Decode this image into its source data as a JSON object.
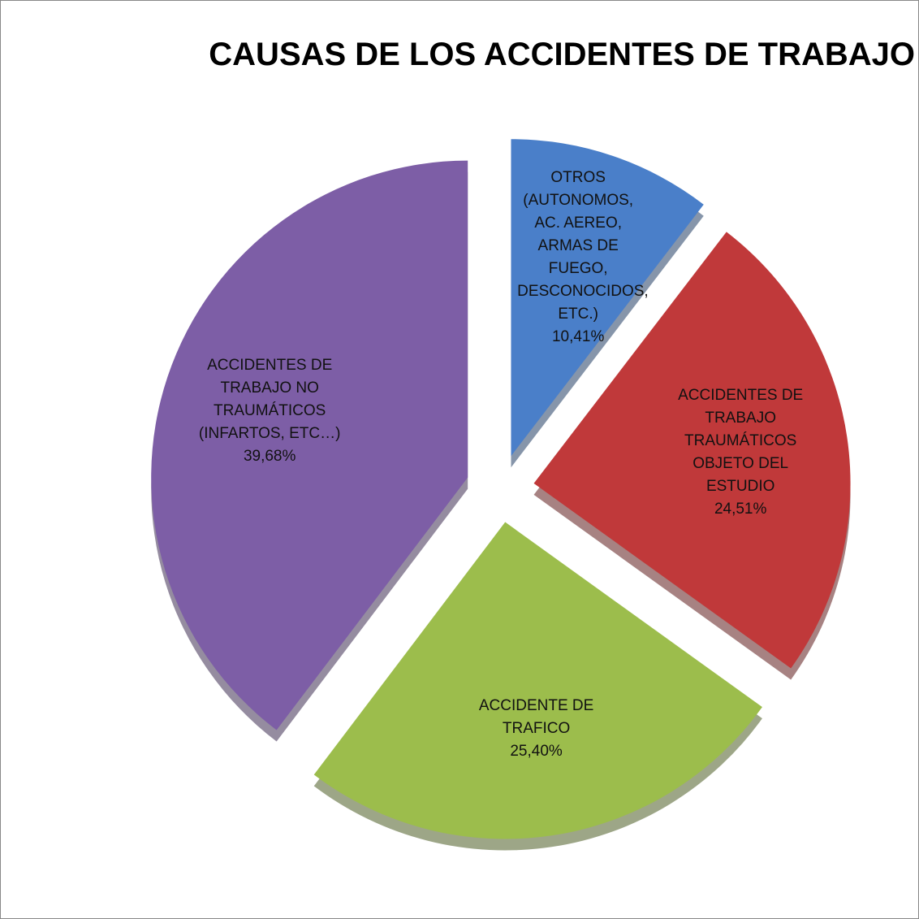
{
  "chart_data": {
    "type": "pie",
    "title": "CAUSAS DE LOS ACCIDENTES DE TRABAJO",
    "categories": [
      "OTROS (AUTONOMOS, AC. AEREO, ARMAS DE FUEGO,  DESCONOCIDOS, ETC.)",
      "ACCIDENTES DE TRABAJO TRAUMÁTICOS OBJETO DEL ESTUDIO",
      "ACCIDENTE DE TRAFICO",
      "ACCIDENTES DE TRABAJO NO TRAUMÁTICOS (INFARTOS, ETC…)"
    ],
    "values": [
      10.41,
      24.51,
      25.4,
      39.68
    ],
    "value_labels": [
      "10,41%",
      "24,51%",
      "25,40%",
      "39,68%"
    ],
    "colors": [
      "#4a7fc9",
      "#c0393a",
      "#9cbd4c",
      "#7d5ea6"
    ]
  }
}
